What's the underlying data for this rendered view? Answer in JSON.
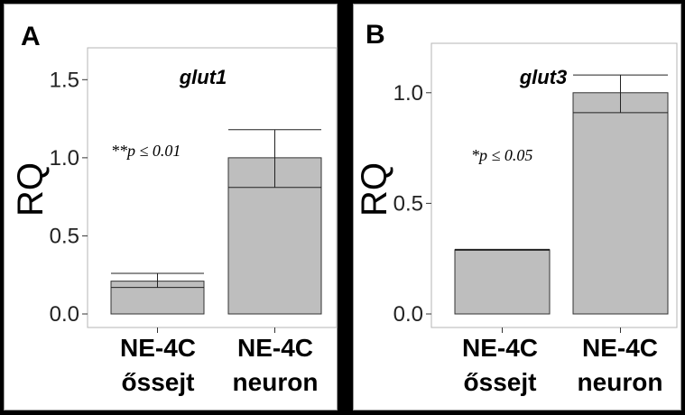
{
  "chart_data": [
    {
      "type": "bar",
      "panel_letter": "A",
      "title": "glut1",
      "annotation": "**p ≤ 0.01",
      "ylabel": "RQ",
      "ylim": [
        0,
        1.6
      ],
      "yticks": [
        0.0,
        0.5,
        1.0,
        1.5
      ],
      "ytick_labels": [
        "0.0",
        "0.5",
        "1.0",
        "1.5"
      ],
      "categories": [
        {
          "line1": "NE-4C",
          "line2": "őssejt"
        },
        {
          "line1": "NE-4C",
          "line2": "neuron"
        }
      ],
      "values": [
        0.21,
        1.0
      ],
      "error_low": [
        0.17,
        0.81
      ],
      "error_high": [
        0.26,
        1.18
      ],
      "bar_color": "#bebebe"
    },
    {
      "type": "bar",
      "panel_letter": "B",
      "title": "glut3",
      "annotation": "*p ≤ 0.05",
      "ylabel": "RQ",
      "ylim": [
        0,
        1.15
      ],
      "yticks": [
        0.0,
        0.5,
        1.0
      ],
      "ytick_labels": [
        "0.0",
        "0.5",
        "1.0"
      ],
      "categories": [
        {
          "line1": "NE-4C",
          "line2": "őssejt"
        },
        {
          "line1": "NE-4C",
          "line2": "neuron"
        }
      ],
      "values": [
        0.29,
        1.0
      ],
      "error_low": [
        0.29,
        0.91
      ],
      "error_high": [
        0.29,
        1.08
      ],
      "bar_color": "#bebebe"
    }
  ]
}
